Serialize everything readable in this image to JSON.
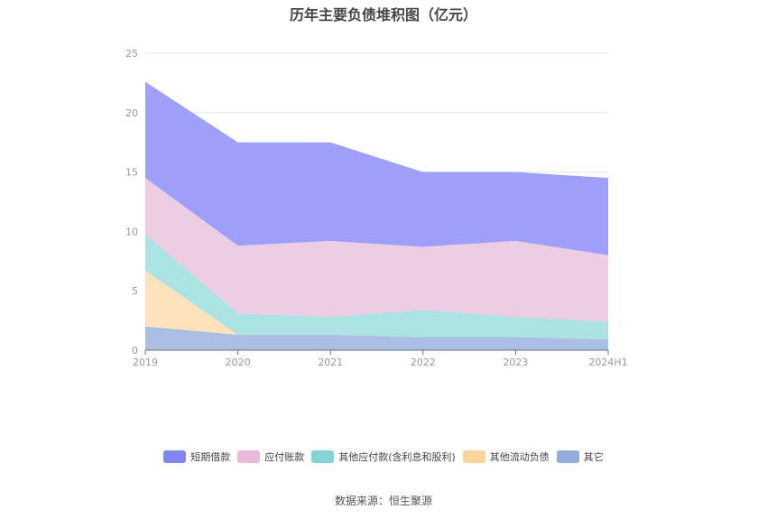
{
  "title": "历年主要负债堆积图（亿元）",
  "source": "数据来源：恒生聚源",
  "chart_data": {
    "type": "area",
    "stacked": true,
    "categories": [
      "2019",
      "2020",
      "2021",
      "2022",
      "2023",
      "2024H1"
    ],
    "ylim": [
      0,
      25
    ],
    "yticks": [
      0,
      5,
      10,
      15,
      20,
      25
    ],
    "grid": true,
    "legend_position": "bottom",
    "series": [
      {
        "name": "其它",
        "color": "#aabde3",
        "values": [
          2.0,
          1.3,
          1.3,
          1.1,
          1.1,
          0.9
        ]
      },
      {
        "name": "其他流动负债",
        "color": "#fde2bb",
        "values": [
          4.7,
          0.0,
          0.0,
          0.0,
          0.0,
          0.0
        ]
      },
      {
        "name": "其他应付款(含利息和股利)",
        "color": "#abe3e2",
        "values": [
          3.1,
          1.8,
          1.5,
          2.3,
          1.7,
          1.5
        ]
      },
      {
        "name": "应付账款",
        "color": "#eccde4",
        "values": [
          4.7,
          5.7,
          6.4,
          5.3,
          6.4,
          5.6
        ]
      },
      {
        "name": "短期借款",
        "color": "#9d9ff8",
        "values": [
          8.1,
          8.7,
          8.3,
          6.3,
          5.8,
          6.5
        ]
      }
    ],
    "legend": [
      {
        "name": "短期借款",
        "color": "#8385f3"
      },
      {
        "name": "应付账款",
        "color": "#e9b9dc"
      },
      {
        "name": "其他应付款(含利息和股利)",
        "color": "#82d5d4"
      },
      {
        "name": "其他流动负债",
        "color": "#fdd49a"
      },
      {
        "name": "其它",
        "color": "#93ace0"
      }
    ]
  }
}
